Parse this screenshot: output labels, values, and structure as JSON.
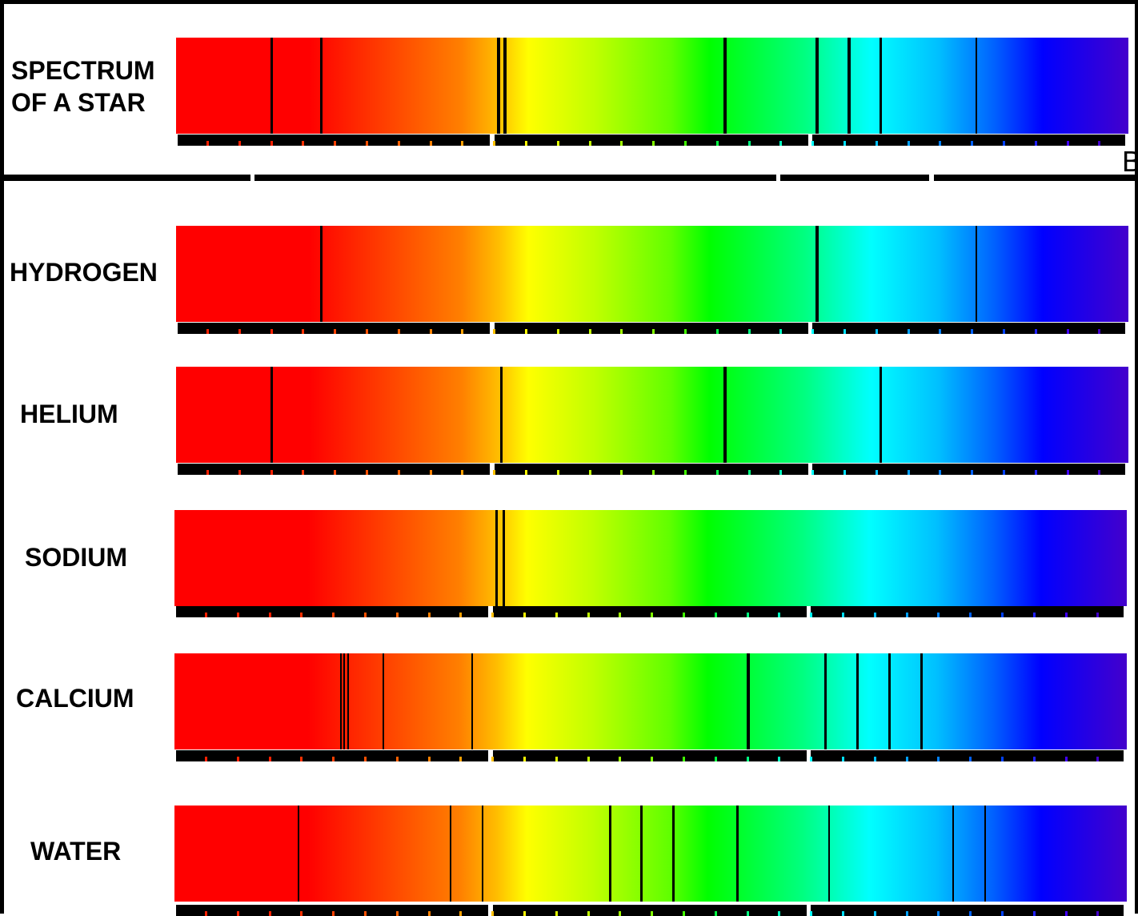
{
  "rows": [
    {
      "label": "SPECTRUM\nOF A STAR",
      "lines": [
        {
          "nm": 655,
          "w": 3
        },
        {
          "nm": 641,
          "w": 3
        },
        {
          "nm": 591,
          "w": 4
        },
        {
          "nm": 589,
          "w": 4
        },
        {
          "nm": 527,
          "w": 4
        },
        {
          "nm": 501,
          "w": 4
        },
        {
          "nm": 492,
          "w": 4
        },
        {
          "nm": 483,
          "w": 3
        },
        {
          "nm": 456,
          "w": 2
        }
      ]
    },
    {
      "label": "HYDROGEN",
      "lines": [
        {
          "nm": 641,
          "w": 3
        },
        {
          "nm": 501,
          "w": 4
        },
        {
          "nm": 456,
          "w": 2
        }
      ]
    },
    {
      "label": "HELIUM",
      "lines": [
        {
          "nm": 655,
          "w": 3
        },
        {
          "nm": 590,
          "w": 3
        },
        {
          "nm": 527,
          "w": 4
        },
        {
          "nm": 483,
          "w": 3
        }
      ]
    },
    {
      "label": "SODIUM",
      "lines": [
        {
          "nm": 591,
          "w": 3
        },
        {
          "nm": 589,
          "w": 3
        }
      ]
    },
    {
      "label": "CALCIUM",
      "lines": [
        {
          "nm": 635,
          "w": 2
        },
        {
          "nm": 634,
          "w": 2
        },
        {
          "nm": 633,
          "w": 2
        },
        {
          "nm": 623,
          "w": 2
        },
        {
          "nm": 598,
          "w": 2
        },
        {
          "nm": 520,
          "w": 4
        },
        {
          "nm": 498,
          "w": 3
        },
        {
          "nm": 489,
          "w": 3
        },
        {
          "nm": 480,
          "w": 3
        },
        {
          "nm": 471,
          "w": 3
        }
      ]
    },
    {
      "label": "WATER",
      "lines": [
        {
          "nm": 647,
          "w": 2
        },
        {
          "nm": 604,
          "w": 2
        },
        {
          "nm": 595,
          "w": 2
        },
        {
          "nm": 559,
          "w": 3
        },
        {
          "nm": 550,
          "w": 3
        },
        {
          "nm": 541,
          "w": 3
        },
        {
          "nm": 523,
          "w": 3
        },
        {
          "nm": 497,
          "w": 2
        },
        {
          "nm": 462,
          "w": 2
        },
        {
          "nm": 453,
          "w": 2
        }
      ]
    }
  ],
  "spectrum_range_nm": [
    682,
    413
  ],
  "edge_note": "B"
}
